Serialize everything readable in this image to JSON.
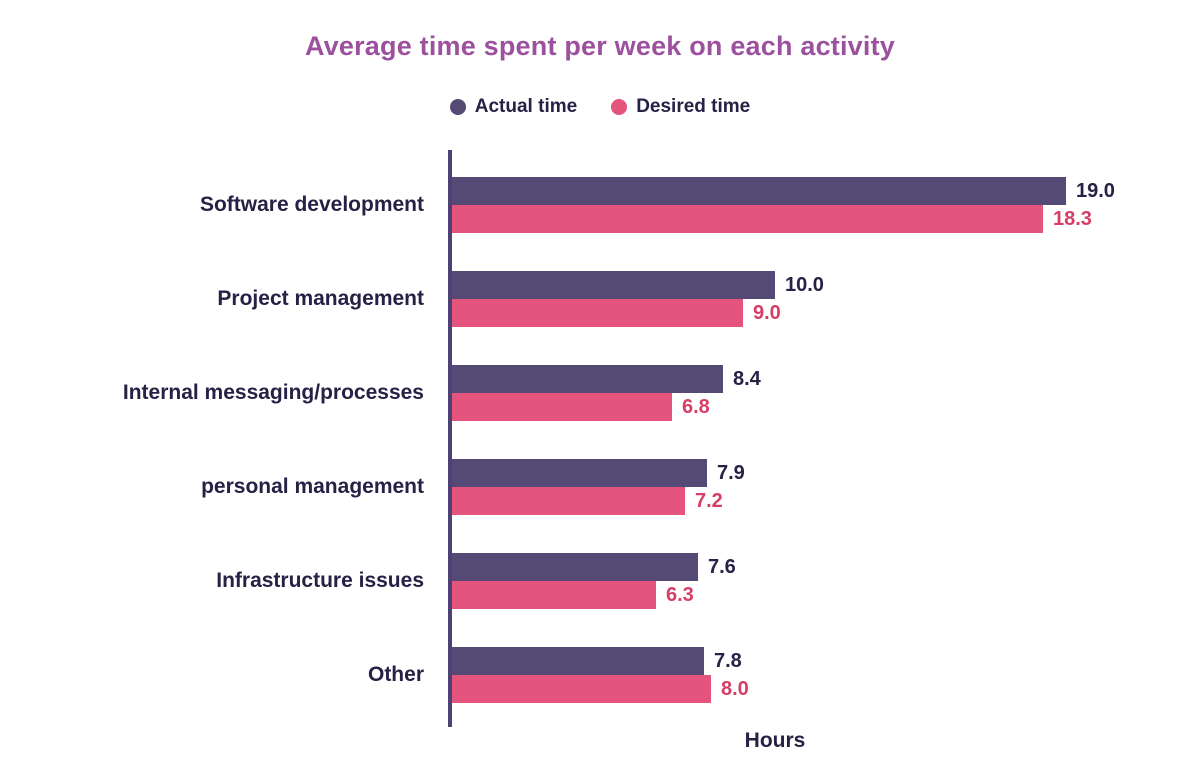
{
  "title": "Average time spent per week on each activity",
  "legend": {
    "items": [
      {
        "label": "Actual time",
        "color": "#554A76"
      },
      {
        "label": "Desired time",
        "color": "#E4547C"
      }
    ]
  },
  "colors": {
    "title": "#9B519E",
    "text_dark": "#262145",
    "axis": "#4E4173",
    "actual_bar": "#554A76",
    "desired_bar": "#E4547C",
    "actual_value_text": "#262145",
    "desired_value_text": "#D63E66"
  },
  "x_axis_label": "Hours",
  "chart_data": {
    "type": "bar",
    "orientation": "horizontal",
    "title": "Average time spent per week on each activity",
    "xlabel": "Hours",
    "ylabel": "",
    "xlim": [
      0,
      19
    ],
    "grid": false,
    "legend_position": "top",
    "categories": [
      "Software development",
      "Project management",
      "Internal messaging/processes",
      "personal management",
      "Infrastructure issues",
      "Other"
    ],
    "series": [
      {
        "name": "Actual time",
        "values": [
          19.0,
          10.0,
          8.4,
          7.9,
          7.6,
          7.8
        ],
        "labels": [
          "19.0",
          "10.0",
          "8.4",
          "7.9",
          "7.6",
          "7.8"
        ]
      },
      {
        "name": "Desired time",
        "values": [
          18.3,
          9.0,
          6.8,
          7.2,
          6.3,
          8.0
        ],
        "labels": [
          "18.3",
          "9.0",
          "6.8",
          "7.2",
          "6.3",
          "8.0"
        ]
      }
    ]
  }
}
